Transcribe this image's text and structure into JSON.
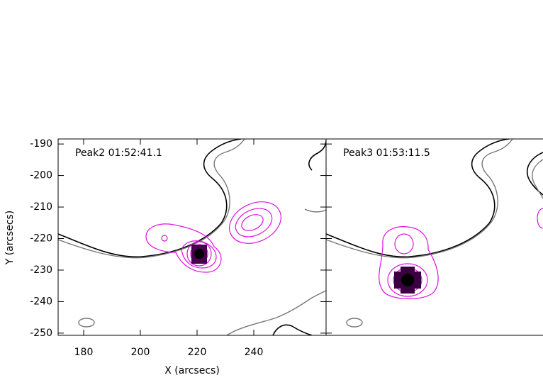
{
  "chart_data": [
    {
      "type": "contour",
      "title": "Peak2 01:52:41.1",
      "x_label": "X (arcsecs)",
      "y_label": "Y (arcsecs)",
      "xlim": [
        171,
        265.5
      ],
      "ylim": [
        -250.7,
        -188.4
      ],
      "xticks": [
        180,
        200,
        220,
        240
      ],
      "yticks": [
        -250,
        -240,
        -230,
        -220,
        -210,
        -200,
        -190
      ]
    },
    {
      "type": "contour",
      "title": "Peak3 01:53:11.5"
    }
  ]
}
